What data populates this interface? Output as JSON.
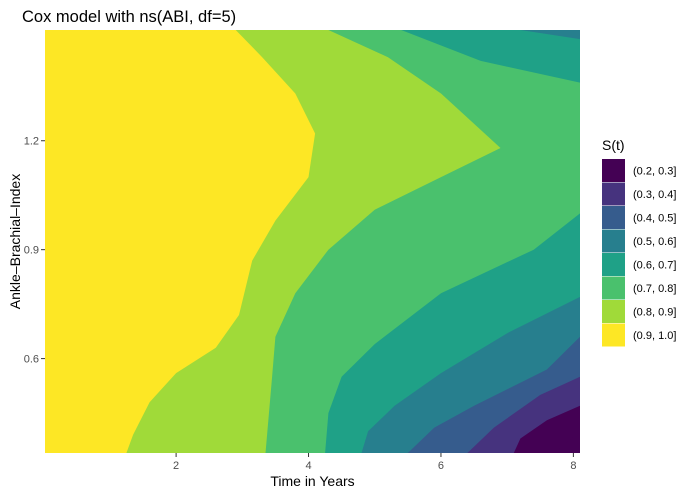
{
  "chart_data": {
    "type": "contour",
    "title": "Cox model with ns(ABI, df=5)",
    "xlabel": "Time in Years",
    "ylabel": "Ankle–Brachial–Index",
    "xlim": [
      0.02,
      8.1
    ],
    "ylim": [
      0.34,
      1.505
    ],
    "x_ticks": [
      2,
      4,
      6,
      8
    ],
    "y_ticks": [
      0.6,
      0.9,
      1.2
    ],
    "x_tick_labels": [
      "2",
      "4",
      "6",
      "8"
    ],
    "y_tick_labels": [
      "0.6",
      "0.9",
      "1.2"
    ],
    "grid": false,
    "legend": {
      "title": "S(t)",
      "placement": "right",
      "levels": [
        {
          "label": "(0.2, 0.3]",
          "color": "#440154"
        },
        {
          "label": "(0.3, 0.4]",
          "color": "#46337E"
        },
        {
          "label": "(0.4, 0.5]",
          "color": "#365C8D"
        },
        {
          "label": "(0.5, 0.6]",
          "color": "#277F8E"
        },
        {
          "label": "(0.6, 0.7]",
          "color": "#1FA187"
        },
        {
          "label": "(0.7, 0.8]",
          "color": "#4AC16D"
        },
        {
          "label": "(0.8, 0.9]",
          "color": "#A0DA39"
        },
        {
          "label": "(0.9, 1.0]",
          "color": "#FDE725"
        }
      ]
    },
    "level_boundaries": [
      {
        "level": 0.9,
        "points": [
          [
            2.9,
            1.505
          ],
          [
            3.3,
            1.43
          ],
          [
            3.8,
            1.33
          ],
          [
            4.1,
            1.22
          ],
          [
            4.0,
            1.1
          ],
          [
            3.5,
            0.98
          ],
          [
            3.15,
            0.87
          ],
          [
            2.95,
            0.72
          ],
          [
            2.6,
            0.63
          ],
          [
            2.0,
            0.56
          ],
          [
            1.6,
            0.48
          ],
          [
            1.35,
            0.39
          ],
          [
            1.25,
            0.34
          ]
        ]
      },
      {
        "level": 0.8,
        "points": [
          [
            4.3,
            1.505
          ],
          [
            5.2,
            1.43
          ],
          [
            6.0,
            1.33
          ],
          [
            6.9,
            1.18
          ],
          [
            6.0,
            1.1
          ],
          [
            5.0,
            1.01
          ],
          [
            4.3,
            0.9
          ],
          [
            3.8,
            0.78
          ],
          [
            3.5,
            0.66
          ],
          [
            3.45,
            0.55
          ],
          [
            3.35,
            0.34
          ]
        ]
      },
      {
        "level": 0.7,
        "points": [
          [
            5.4,
            1.505
          ],
          [
            6.6,
            1.42
          ],
          [
            8.1,
            1.36
          ],
          [
            8.1,
            1.0
          ],
          [
            7.4,
            0.9
          ],
          [
            6.0,
            0.78
          ],
          [
            5.0,
            0.64
          ],
          [
            4.5,
            0.55
          ],
          [
            4.3,
            0.45
          ],
          [
            4.25,
            0.34
          ]
        ]
      },
      {
        "level": 0.6,
        "points": [
          [
            7.2,
            1.505
          ],
          [
            8.1,
            1.48
          ],
          [
            8.1,
            0.77
          ],
          [
            7.0,
            0.67
          ],
          [
            6.0,
            0.56
          ],
          [
            5.3,
            0.47
          ],
          [
            4.9,
            0.4
          ],
          [
            4.8,
            0.34
          ]
        ]
      },
      {
        "level": 0.5,
        "points": [
          [
            7.85,
            1.505
          ],
          [
            8.1,
            1.505
          ],
          [
            8.1,
            0.66
          ],
          [
            7.6,
            0.57
          ],
          [
            6.5,
            0.47
          ],
          [
            5.9,
            0.41
          ],
          [
            5.5,
            0.34
          ]
        ]
      },
      {
        "level": 0.4,
        "points": [
          [
            8.1,
            0.55
          ],
          [
            7.5,
            0.5
          ],
          [
            6.8,
            0.41
          ],
          [
            6.4,
            0.34
          ]
        ]
      },
      {
        "level": 0.3,
        "points": [
          [
            8.1,
            0.47
          ],
          [
            7.6,
            0.43
          ],
          [
            7.2,
            0.38
          ],
          [
            7.1,
            0.34
          ]
        ]
      },
      {
        "level": 0.2,
        "points": [
          [
            8.1,
            0.4
          ],
          [
            7.9,
            0.37
          ],
          [
            7.7,
            0.34
          ]
        ]
      }
    ]
  }
}
